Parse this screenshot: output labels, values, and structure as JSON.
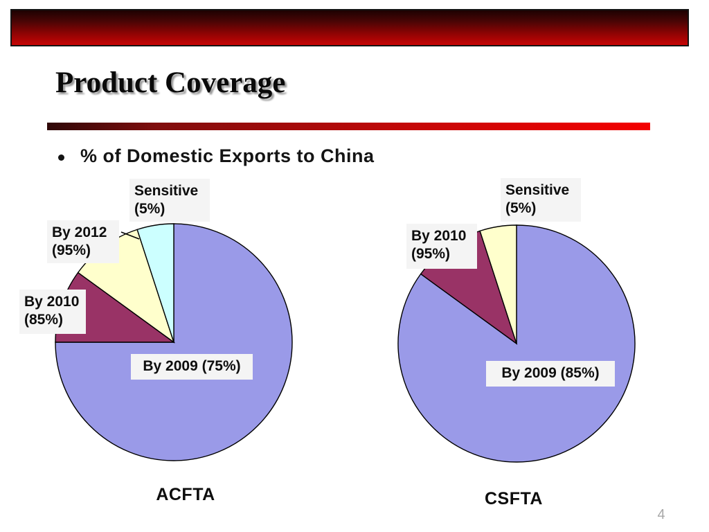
{
  "slide": {
    "title": "Product Coverage",
    "bullet_text": "% of Domestic Exports to China",
    "page_number": "4"
  },
  "chart_data": [
    {
      "type": "pie",
      "title": "ACFTA",
      "start_angle": "12 o'clock",
      "direction": "clockwise",
      "legend_position": "none",
      "slices": [
        {
          "label": "By 2009 (75%)",
          "label_lines": [
            "By 2009 (75%)"
          ],
          "value_pct": 75,
          "color": "#9A9AE8"
        },
        {
          "label": "By 2010 (85%)",
          "label_lines": [
            "By 2010",
            "(85%)"
          ],
          "value_pct": 10,
          "color": "#993366"
        },
        {
          "label": "By 2012 (95%)",
          "label_lines": [
            "By 2012",
            "(95%)"
          ],
          "value_pct": 10,
          "color": "#FFFFCC"
        },
        {
          "label": "Sensitive (5%)",
          "label_lines": [
            "Sensitive",
            "(5%)"
          ],
          "value_pct": 5,
          "color": "#CCFFFF"
        }
      ]
    },
    {
      "type": "pie",
      "title": "CSFTA",
      "start_angle": "12 o'clock",
      "direction": "clockwise",
      "legend_position": "none",
      "slices": [
        {
          "label": "By 2009 (85%)",
          "label_lines": [
            "By 2009 (85%)"
          ],
          "value_pct": 85,
          "color": "#9A9AE8"
        },
        {
          "label": "By 2010 (95%)",
          "label_lines": [
            "By 2010",
            "(95%)"
          ],
          "value_pct": 10,
          "color": "#993366"
        },
        {
          "label": "Sensitive (5%)",
          "label_lines": [
            "Sensitive",
            "(5%)"
          ],
          "value_pct": 5,
          "color": "#FFFFCC"
        }
      ]
    }
  ]
}
